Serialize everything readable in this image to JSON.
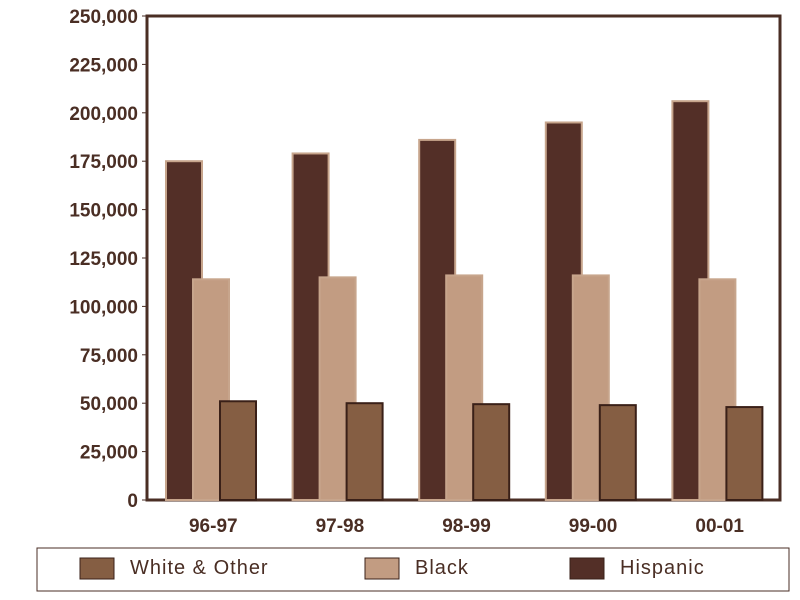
{
  "chart_data": {
    "type": "bar",
    "title": "",
    "xlabel": "",
    "ylabel": "",
    "categories": [
      "96-97",
      "97-98",
      "98-99",
      "99-00",
      "00-01"
    ],
    "ylim": [
      0,
      250000
    ],
    "yticks": [
      "0",
      "25,000",
      "50,000",
      "75,000",
      "100,000",
      "125,000",
      "150,000",
      "175,000",
      "200,000",
      "225,000",
      "250,000"
    ],
    "series": [
      {
        "name": "Hispanic",
        "values": [
          175000,
          179000,
          186000,
          195000,
          206000
        ],
        "color": "#532f27"
      },
      {
        "name": "Black",
        "values": [
          114000,
          115000,
          116000,
          116000,
          114000
        ],
        "color": "#c29c82"
      },
      {
        "name": "White & Other",
        "values": [
          51000,
          50000,
          49500,
          49000,
          48000
        ],
        "color": "#855e43"
      }
    ],
    "legend_order": [
      "White & Other",
      "Black",
      "Hispanic"
    ],
    "legend_placement": "bottom",
    "grid": false
  }
}
